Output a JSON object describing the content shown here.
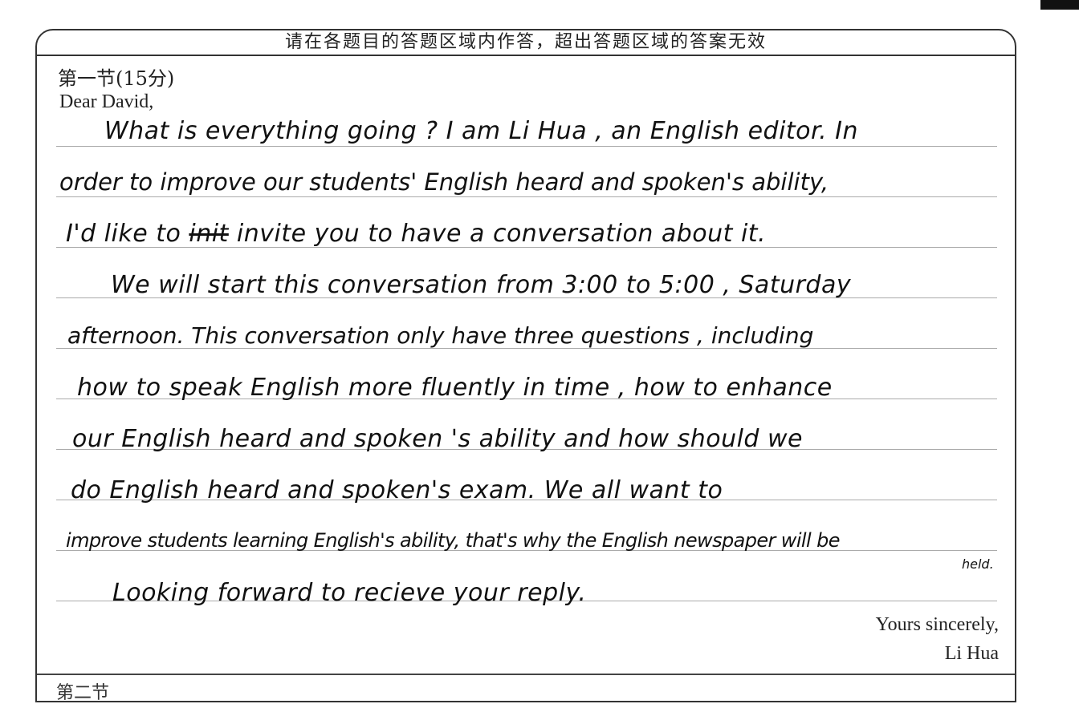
{
  "header": {
    "notice": "请在各题目的答题区域内作答，超出答题区域的答案无效"
  },
  "section": {
    "title": "第一节(15分)"
  },
  "letter": {
    "greeting": "Dear David,",
    "lines": [
      "What is everything going ? I am Li Hua , an English editor. In",
      "order to improve our students' English heard and spoken's ability,",
      "I'd like to",
      "init",
      "invite you to have a conversation about it.",
      "We will start this conversation from 3:00 to 5:00 , Saturday",
      "afternoon. This conversation only have three questions , including",
      "how to speak English more fluently in time , how to enhance",
      "our English heard and spoken 's ability and how should we",
      "do English heard and spoken's exam. We all want to",
      "improve students learning English's ability, that's why the English newspaper will be",
      "held.",
      "Looking forward to recieve your reply."
    ],
    "closing": "Yours sincerely,",
    "signature": "Li Hua"
  },
  "next_section": {
    "title": "第二节"
  }
}
